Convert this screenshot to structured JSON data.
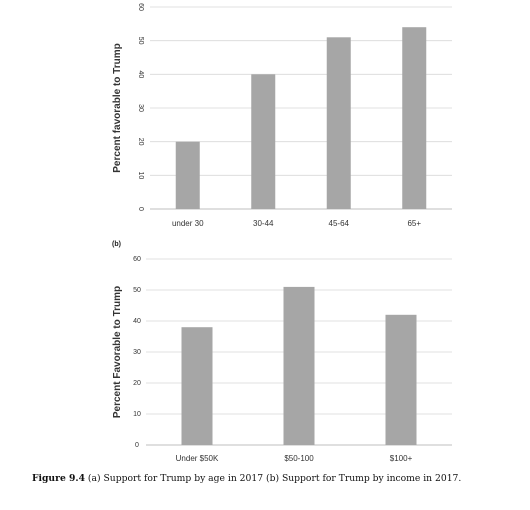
{
  "caption": {
    "label": "Figure 9.4",
    "text": "(a) Support for Trump by age in 2017 (b) Support for Trump by income in 2017."
  },
  "colors": {
    "bar": "#a6a6a6",
    "grid": "#d9d9d9"
  },
  "chart_data": [
    {
      "type": "bar",
      "panel_label": "",
      "categories": [
        "under 30",
        "30-44",
        "45-64",
        "65+"
      ],
      "values": [
        20,
        40,
        51,
        54
      ],
      "ylabel": "Percent favorable to Trump",
      "xlabel": "",
      "ylim": [
        0,
        60
      ],
      "yticks": [
        0,
        10,
        20,
        30,
        40,
        50,
        60
      ],
      "ytick_rotation": 90,
      "grid": true
    },
    {
      "type": "bar",
      "panel_label": "(b)",
      "categories": [
        "Under $50K",
        "$50-100",
        "$100+"
      ],
      "values": [
        38,
        51,
        42
      ],
      "ylabel": "Percent Favorable to Trump",
      "xlabel": "",
      "ylim": [
        0,
        60
      ],
      "yticks": [
        0,
        10,
        20,
        30,
        40,
        50,
        60
      ],
      "ytick_rotation": 0,
      "grid": true
    }
  ]
}
